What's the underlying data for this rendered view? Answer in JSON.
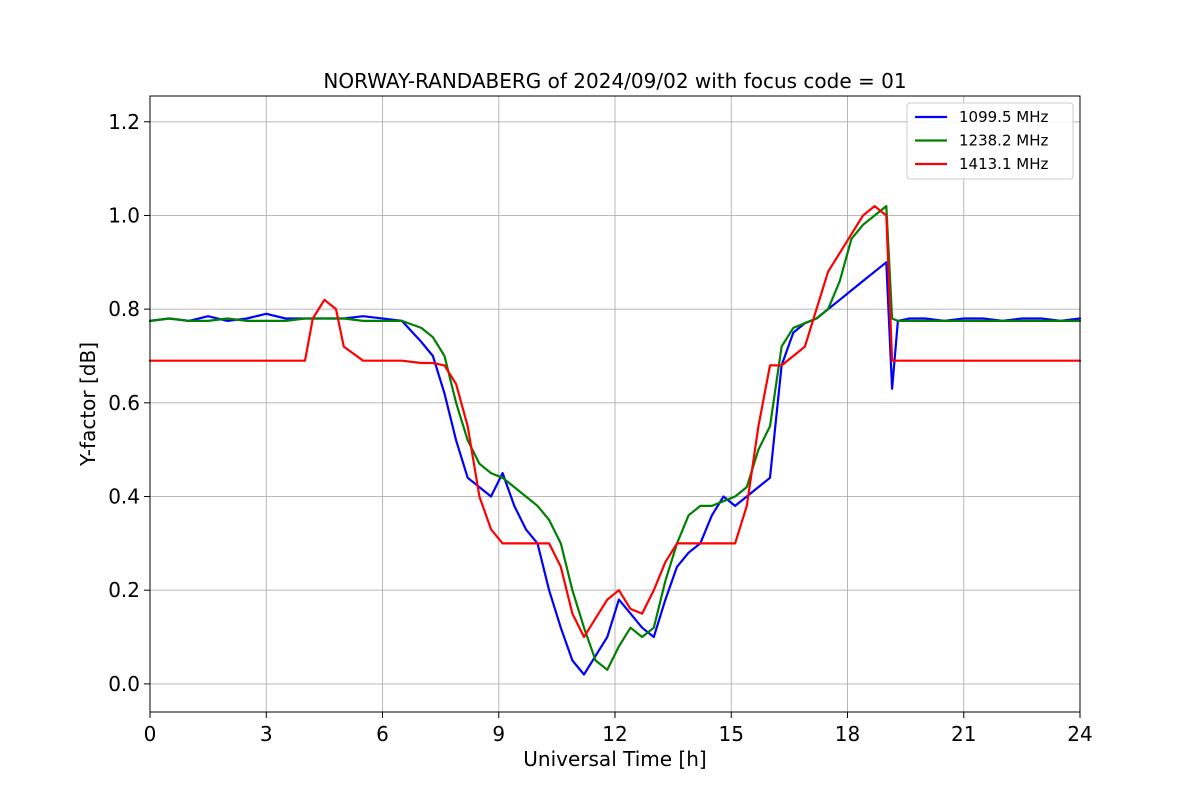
{
  "chart_data": {
    "type": "line",
    "title": "NORWAY-RANDABERG of 2024/09/02 with focus code = 01",
    "xlabel": "Universal Time [h]",
    "ylabel": "Y-factor [dB]",
    "xlim": [
      0,
      24
    ],
    "ylim": [
      -0.06,
      1.255
    ],
    "x_ticks": [
      0,
      3,
      6,
      9,
      12,
      15,
      18,
      21,
      24
    ],
    "x_tick_labels": [
      "0",
      "3",
      "6",
      "9",
      "12",
      "15",
      "18",
      "21",
      "24"
    ],
    "y_ticks": [
      0.0,
      0.2,
      0.4,
      0.6,
      0.8,
      1.0,
      1.2
    ],
    "y_tick_labels": [
      "0.0",
      "0.2",
      "0.4",
      "0.6",
      "0.8",
      "1.0",
      "1.2"
    ],
    "grid": true,
    "legend_position": "top-right",
    "series": [
      {
        "name": "1099.5 MHz",
        "color": "#0000ff",
        "x": [
          0,
          0.5,
          1,
          1.5,
          2,
          2.5,
          3,
          3.5,
          4,
          4.5,
          5,
          5.5,
          6,
          6.5,
          7,
          7.3,
          7.6,
          7.9,
          8.2,
          8.5,
          8.8,
          9.1,
          9.4,
          9.7,
          10,
          10.3,
          10.6,
          10.9,
          11.2,
          11.5,
          11.8,
          12.1,
          12.4,
          12.7,
          13,
          13.3,
          13.6,
          13.9,
          14.2,
          14.5,
          14.8,
          15.1,
          15.4,
          15.7,
          16,
          16.3,
          16.6,
          16.9,
          17.2,
          17.5,
          17.8,
          18.1,
          18.4,
          18.7,
          19,
          19.15,
          19.3,
          19.6,
          20,
          20.5,
          21,
          21.5,
          22,
          22.5,
          23,
          23.5,
          24
        ],
        "y": [
          0.775,
          0.78,
          0.775,
          0.785,
          0.775,
          0.78,
          0.79,
          0.78,
          0.78,
          0.78,
          0.78,
          0.785,
          0.78,
          0.775,
          0.73,
          0.7,
          0.62,
          0.52,
          0.44,
          0.42,
          0.4,
          0.45,
          0.38,
          0.33,
          0.3,
          0.2,
          0.12,
          0.05,
          0.02,
          0.06,
          0.1,
          0.18,
          0.15,
          0.12,
          0.1,
          0.18,
          0.25,
          0.28,
          0.3,
          0.36,
          0.4,
          0.38,
          0.4,
          0.42,
          0.44,
          0.68,
          0.75,
          0.77,
          0.78,
          0.8,
          0.82,
          0.84,
          0.86,
          0.88,
          0.9,
          0.63,
          0.775,
          0.78,
          0.78,
          0.775,
          0.78,
          0.78,
          0.775,
          0.78,
          0.78,
          0.775,
          0.78
        ]
      },
      {
        "name": "1238.2 MHz",
        "color": "#008000",
        "x": [
          0,
          0.5,
          1,
          1.5,
          2,
          2.5,
          3,
          3.5,
          4,
          4.5,
          5,
          5.5,
          6,
          6.5,
          7,
          7.3,
          7.6,
          7.9,
          8.2,
          8.5,
          8.8,
          9.1,
          9.4,
          9.7,
          10,
          10.3,
          10.6,
          10.9,
          11.2,
          11.5,
          11.8,
          12.1,
          12.4,
          12.7,
          13,
          13.3,
          13.6,
          13.9,
          14.2,
          14.5,
          14.8,
          15.1,
          15.4,
          15.7,
          16,
          16.3,
          16.6,
          16.9,
          17.2,
          17.5,
          17.8,
          18.1,
          18.4,
          18.7,
          19,
          19.15,
          19.3,
          19.6,
          20,
          20.5,
          21,
          21.5,
          22,
          22.5,
          23,
          23.5,
          24
        ],
        "y": [
          0.775,
          0.78,
          0.775,
          0.775,
          0.78,
          0.775,
          0.775,
          0.775,
          0.78,
          0.78,
          0.78,
          0.775,
          0.775,
          0.775,
          0.76,
          0.74,
          0.7,
          0.6,
          0.52,
          0.47,
          0.45,
          0.44,
          0.42,
          0.4,
          0.38,
          0.35,
          0.3,
          0.2,
          0.12,
          0.05,
          0.03,
          0.08,
          0.12,
          0.1,
          0.12,
          0.22,
          0.3,
          0.36,
          0.38,
          0.38,
          0.39,
          0.4,
          0.42,
          0.5,
          0.55,
          0.72,
          0.76,
          0.77,
          0.78,
          0.8,
          0.86,
          0.95,
          0.98,
          1.0,
          1.02,
          0.78,
          0.775,
          0.775,
          0.775,
          0.775,
          0.775,
          0.775,
          0.775,
          0.775,
          0.775,
          0.775,
          0.775
        ]
      },
      {
        "name": "1413.1 MHz",
        "color": "#ff0000",
        "x": [
          0,
          0.5,
          1,
          1.5,
          2,
          2.5,
          3,
          3.5,
          4,
          4.2,
          4.5,
          4.8,
          5,
          5.5,
          6,
          6.5,
          7,
          7.3,
          7.6,
          7.9,
          8.2,
          8.5,
          8.8,
          9.1,
          9.4,
          9.7,
          10,
          10.3,
          10.6,
          10.9,
          11.2,
          11.5,
          11.8,
          12.1,
          12.4,
          12.7,
          13,
          13.3,
          13.6,
          13.9,
          14.2,
          14.5,
          14.8,
          15.1,
          15.4,
          15.7,
          16,
          16.3,
          16.6,
          16.9,
          17.2,
          17.5,
          17.8,
          18.1,
          18.4,
          18.7,
          19,
          19.15,
          19.3,
          19.6,
          20,
          20.5,
          21,
          21.5,
          22,
          22.5,
          23,
          23.5,
          24
        ],
        "y": [
          0.69,
          0.69,
          0.69,
          0.69,
          0.69,
          0.69,
          0.69,
          0.69,
          0.69,
          0.78,
          0.82,
          0.8,
          0.72,
          0.69,
          0.69,
          0.69,
          0.685,
          0.685,
          0.68,
          0.64,
          0.55,
          0.4,
          0.33,
          0.3,
          0.3,
          0.3,
          0.3,
          0.3,
          0.25,
          0.15,
          0.1,
          0.14,
          0.18,
          0.2,
          0.16,
          0.15,
          0.2,
          0.26,
          0.3,
          0.3,
          0.3,
          0.3,
          0.3,
          0.3,
          0.38,
          0.55,
          0.68,
          0.68,
          0.7,
          0.72,
          0.8,
          0.88,
          0.92,
          0.96,
          1.0,
          1.02,
          1.0,
          0.69,
          0.69,
          0.69,
          0.69,
          0.69,
          0.69,
          0.69,
          0.69,
          0.69,
          0.69,
          0.69,
          0.69
        ]
      }
    ]
  }
}
